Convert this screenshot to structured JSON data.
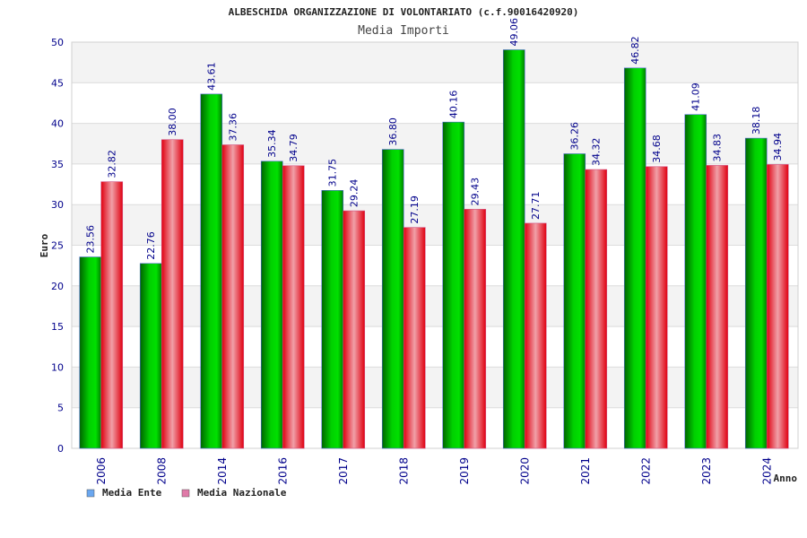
{
  "chart_data": {
    "type": "bar",
    "title": "ALBESCHIDA ORGANIZZAZIONE DI VOLONTARIATO (c.f.90016420920)",
    "subtitle": "Media Importi",
    "xlabel": "Anno",
    "ylabel": "Euro",
    "ylim": [
      0,
      50
    ],
    "yticks": [
      0,
      5,
      10,
      15,
      20,
      25,
      30,
      35,
      40,
      45,
      50
    ],
    "grid": true,
    "legend_position": "bottom-left",
    "categories": [
      "2006",
      "2008",
      "2014",
      "2016",
      "2017",
      "2018",
      "2019",
      "2020",
      "2021",
      "2022",
      "2023",
      "2024"
    ],
    "series": [
      {
        "name": "Media Ente",
        "color": "#00c000",
        "legend_color": "#6aa7f0",
        "values": [
          23.56,
          22.76,
          43.61,
          35.34,
          31.75,
          36.8,
          40.16,
          49.06,
          36.26,
          46.82,
          41.09,
          38.18
        ],
        "labels": [
          "23.56",
          "22.76",
          "43.61",
          "35.34",
          "31.75",
          "36.80",
          "40.16",
          "49.06",
          "36.26",
          "46.82",
          "41.09",
          "38.18"
        ]
      },
      {
        "name": "Media Nazionale",
        "color": "#ee1122",
        "legend_color": "#e07aa8",
        "values": [
          32.82,
          38.0,
          37.36,
          34.79,
          29.24,
          27.19,
          29.43,
          27.71,
          34.32,
          34.68,
          34.83,
          34.94
        ],
        "labels": [
          "32.82",
          "38.00",
          "37.36",
          "34.79",
          "29.24",
          "27.19",
          "29.43",
          "27.71",
          "34.32",
          "34.68",
          "34.83",
          "34.94"
        ]
      }
    ]
  }
}
